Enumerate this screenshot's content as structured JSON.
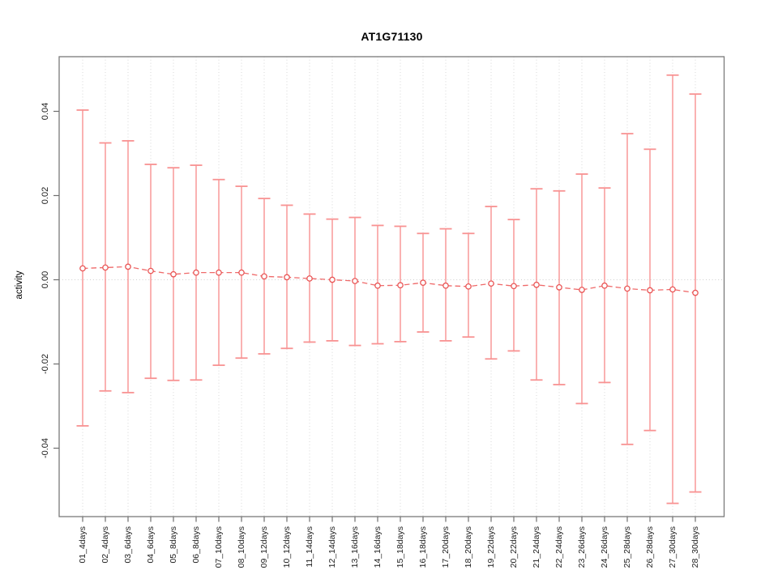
{
  "chart_data": {
    "type": "line",
    "subtype": "points-with-error-bars",
    "title": "AT1G71130",
    "xlabel": "",
    "ylabel": "activity",
    "legend": "none",
    "grid": "dotted vertical line at each category; dotted horizontal line at y=0",
    "categories": [
      "01_4days",
      "02_4days",
      "03_6days",
      "04_6days",
      "05_8days",
      "06_8days",
      "07_10days",
      "08_10days",
      "09_12days",
      "10_12days",
      "11_14days",
      "12_14days",
      "13_16days",
      "14_16days",
      "15_18days",
      "16_18days",
      "17_20days",
      "18_20days",
      "19_22days",
      "20_22days",
      "21_24days",
      "22_24days",
      "23_26days",
      "24_26days",
      "25_28days",
      "26_28days",
      "27_30days",
      "28_30days"
    ],
    "series": [
      {
        "name": "activity",
        "marker": "open-circle",
        "line_style": "dashed",
        "values": [
          0.0027,
          0.0029,
          0.0031,
          0.0021,
          0.0013,
          0.0017,
          0.0017,
          0.0017,
          0.0008,
          0.0006,
          0.0003,
          0.0,
          -0.0003,
          -0.0014,
          -0.0013,
          -0.0007,
          -0.0014,
          -0.0016,
          -0.0009,
          -0.0015,
          -0.0012,
          -0.0018,
          -0.0024,
          -0.0014,
          -0.0021,
          -0.0025,
          -0.0023,
          -0.0031
        ],
        "upper": [
          0.0403,
          0.0325,
          0.033,
          0.0274,
          0.0266,
          0.0272,
          0.0238,
          0.0222,
          0.0193,
          0.0177,
          0.0156,
          0.0144,
          0.0148,
          0.0129,
          0.0127,
          0.011,
          0.0121,
          0.011,
          0.0174,
          0.0143,
          0.0216,
          0.0211,
          0.0251,
          0.0218,
          0.0347,
          0.031,
          0.0486,
          0.0441
        ],
        "lower": [
          -0.0347,
          -0.0264,
          -0.0268,
          -0.0234,
          -0.0239,
          -0.0238,
          -0.0203,
          -0.0186,
          -0.0176,
          -0.0163,
          -0.0148,
          -0.0145,
          -0.0156,
          -0.0152,
          -0.0147,
          -0.0124,
          -0.0145,
          -0.0136,
          -0.0188,
          -0.0169,
          -0.0238,
          -0.0249,
          -0.0294,
          -0.0244,
          -0.0391,
          -0.0358,
          -0.0531,
          -0.0504
        ]
      }
    ],
    "ytick_labels": [
      "0.04",
      "0.02",
      "0.00",
      "-0.02",
      "-0.04"
    ],
    "yticks": [
      0.04,
      0.02,
      0.0,
      -0.02,
      -0.04
    ],
    "ylim": [
      -0.056,
      0.053
    ],
    "colors": {
      "error_bar": "#f89292",
      "series_line": "#ef6a6a",
      "point_stroke": "#e95555",
      "point_fill": "#ffffff",
      "grid": "#d7d7d7",
      "zero_line": "#cfcfcf",
      "box": "#7a7a7a",
      "tick": "#6f6f6f",
      "tick_label": "#1c1c1c",
      "background": "#ffffff"
    }
  }
}
